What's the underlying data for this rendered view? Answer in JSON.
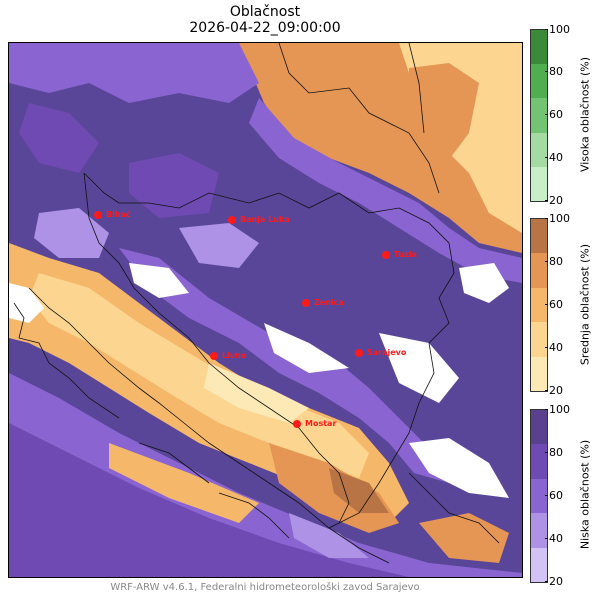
{
  "title": {
    "line1": "Oblačnost",
    "line2": "2026-04-22_09:00:00"
  },
  "footer": "WRF-ARW v4.6.1, Federalni hidrometeorološki zavod Sarajevo",
  "cities": [
    {
      "name": "Bihać"
    },
    {
      "name": "Banja Luka"
    },
    {
      "name": "Tuzla"
    },
    {
      "name": "Zenica"
    },
    {
      "name": "Livno"
    },
    {
      "name": "Sarajevo"
    },
    {
      "name": "Mostar"
    }
  ],
  "colorbars": [
    {
      "label": "Visoka oblačnost (%)",
      "ticks": [
        "100",
        "80",
        "60",
        "40",
        "20"
      ],
      "colors": [
        "#3a8a3a",
        "#4fae4f",
        "#72c472",
        "#a3dba3",
        "#c9efc9"
      ]
    },
    {
      "label": "Srednja oblačnost (%)",
      "ticks": [
        "100",
        "80",
        "60",
        "40",
        "20"
      ],
      "colors": [
        "#b87444",
        "#e59655",
        "#f5b86a",
        "#fcd690",
        "#fde9b6"
      ]
    },
    {
      "label": "Niska oblačnost (%)",
      "ticks": [
        "100",
        "80",
        "60",
        "40",
        "20"
      ],
      "colors": [
        "#594190",
        "#6f4ab3",
        "#8a65d2",
        "#ae92e6",
        "#d3c3f5"
      ]
    }
  ],
  "colors": {
    "city_marker": "#ff1a1a",
    "land_background": "#5a4699"
  }
}
